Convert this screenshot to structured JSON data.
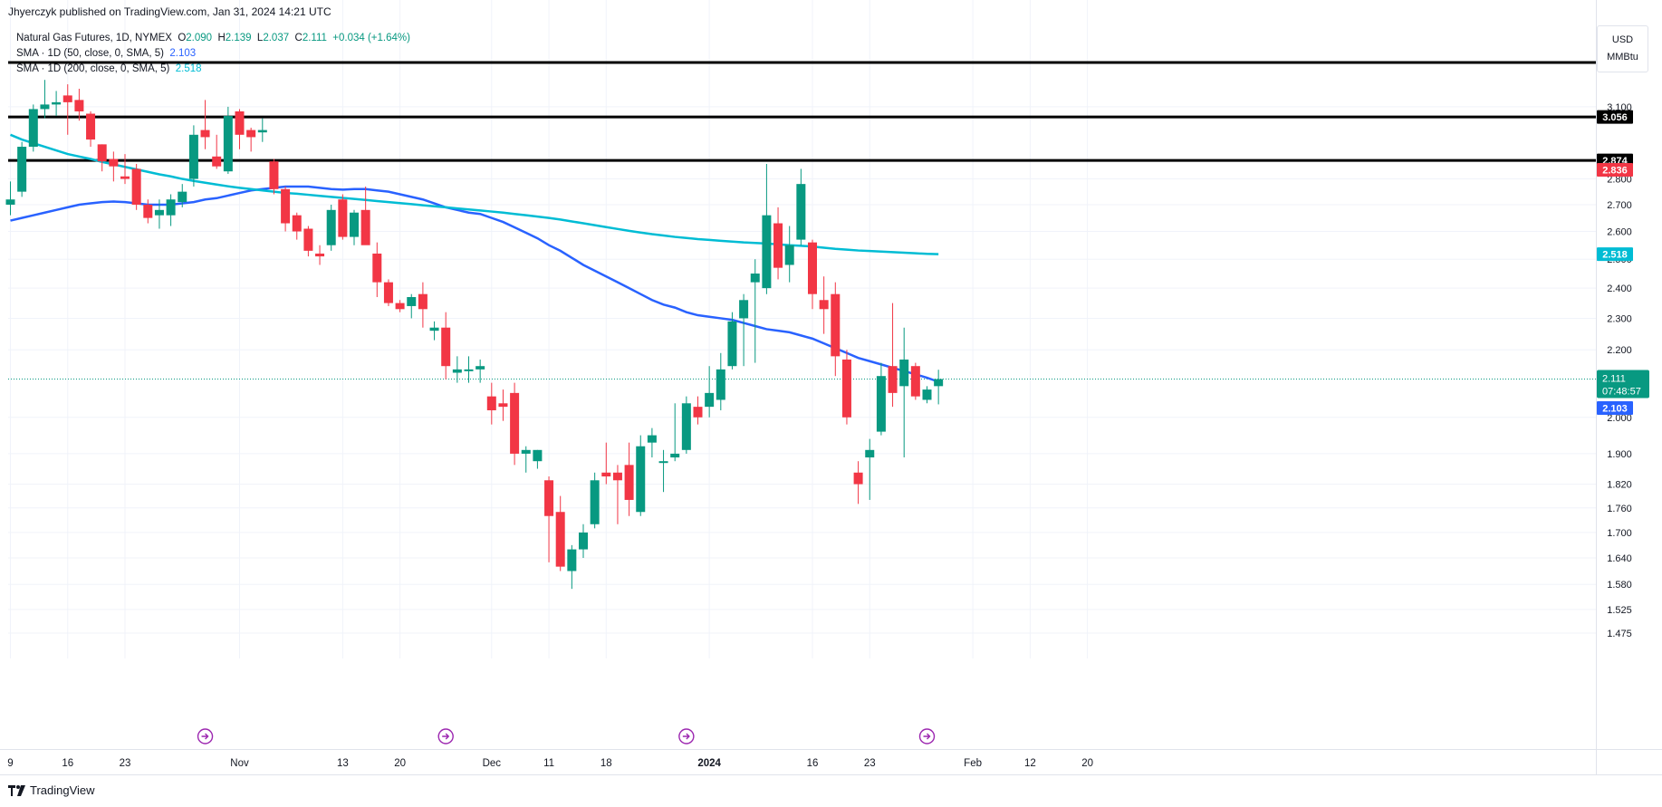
{
  "header": {
    "published": "Jhyerczyk published on TradingView.com, Jan 31, 2024 14:21 UTC"
  },
  "legend": {
    "symbol": "Natural Gas Futures, 1D, NYMEX",
    "o_label": "O",
    "o_value": "2.090",
    "h_label": "H",
    "h_value": "2.139",
    "l_label": "L",
    "l_value": "2.037",
    "c_label": "C",
    "c_value": "2.111",
    "change": "+0.034 (+1.64%)",
    "sma50_label": "SMA · 1D (50, close, 0, SMA, 5)",
    "sma50_value": "2.103",
    "sma200_label": "SMA · 1D (200, close, 0, SMA, 5)",
    "sma200_value": "2.518"
  },
  "unit_box": {
    "currency": "USD",
    "unit": "MMBtu"
  },
  "brand": {
    "name": "TradingView"
  },
  "colors": {
    "up": "#089981",
    "down": "#f23645",
    "sma50": "#2962ff",
    "sma200": "#00bcd4",
    "grid": "#f0f3fa"
  },
  "chart_data": {
    "type": "candlestick",
    "title": "Natural Gas Futures, 1D, NYMEX",
    "y_scale": "log",
    "ylim": [
      1.45,
      3.3
    ],
    "y_ticks": [
      "3.100",
      "2.800",
      "2.700",
      "2.600",
      "2.500",
      "2.400",
      "2.300",
      "2.200",
      "2.000",
      "1.900",
      "1.820",
      "1.760",
      "1.700",
      "1.640",
      "1.580",
      "1.525",
      "1.475"
    ],
    "x_ticks": [
      "9",
      "16",
      "23",
      "Nov",
      "13",
      "20",
      "Dec",
      "11",
      "18",
      "2024",
      "16",
      "23",
      "Feb",
      "12",
      "20"
    ],
    "x_tick_slots": [
      0,
      5,
      10,
      20,
      29,
      34,
      42,
      47,
      52,
      61,
      70,
      75,
      84,
      89,
      94
    ],
    "grid": true,
    "event_markers_slots": [
      17,
      38,
      59,
      80
    ],
    "horizontal_levels": [
      3.3,
      3.056,
      2.874
    ],
    "last_price": {
      "value": "2.111",
      "countdown": "07:48:57"
    },
    "price_labels": [
      {
        "value": "3.056",
        "style": "black"
      },
      {
        "value": "2.874",
        "style": "black"
      },
      {
        "value": "2.836",
        "style": "red"
      },
      {
        "value": "2.518",
        "style": "cyan"
      },
      {
        "value": "2.103",
        "style": "blue"
      }
    ],
    "candles": [
      {
        "o": 2.7,
        "h": 2.79,
        "l": 2.66,
        "c": 2.72
      },
      {
        "o": 2.75,
        "h": 2.95,
        "l": 2.73,
        "c": 2.93
      },
      {
        "o": 2.93,
        "h": 3.11,
        "l": 2.91,
        "c": 3.09
      },
      {
        "o": 3.09,
        "h": 3.22,
        "l": 3.05,
        "c": 3.11
      },
      {
        "o": 3.11,
        "h": 3.17,
        "l": 3.06,
        "c": 3.12
      },
      {
        "o": 3.15,
        "h": 3.2,
        "l": 2.98,
        "c": 3.12
      },
      {
        "o": 3.13,
        "h": 3.18,
        "l": 3.04,
        "c": 3.08
      },
      {
        "o": 3.07,
        "h": 3.08,
        "l": 2.93,
        "c": 2.96
      },
      {
        "o": 2.94,
        "h": 2.94,
        "l": 2.83,
        "c": 2.87
      },
      {
        "o": 2.88,
        "h": 2.91,
        "l": 2.79,
        "c": 2.85
      },
      {
        "o": 2.81,
        "h": 2.9,
        "l": 2.78,
        "c": 2.8
      },
      {
        "o": 2.84,
        "h": 2.86,
        "l": 2.68,
        "c": 2.7
      },
      {
        "o": 2.7,
        "h": 2.72,
        "l": 2.63,
        "c": 2.65
      },
      {
        "o": 2.66,
        "h": 2.72,
        "l": 2.61,
        "c": 2.68
      },
      {
        "o": 2.66,
        "h": 2.74,
        "l": 2.62,
        "c": 2.72
      },
      {
        "o": 2.71,
        "h": 2.78,
        "l": 2.69,
        "c": 2.75
      },
      {
        "o": 2.8,
        "h": 3.02,
        "l": 2.77,
        "c": 2.98
      },
      {
        "o": 3.0,
        "h": 3.13,
        "l": 2.92,
        "c": 2.97
      },
      {
        "o": 2.89,
        "h": 2.98,
        "l": 2.84,
        "c": 2.85
      },
      {
        "o": 2.83,
        "h": 3.1,
        "l": 2.82,
        "c": 3.06
      },
      {
        "o": 3.08,
        "h": 3.09,
        "l": 2.92,
        "c": 2.98
      },
      {
        "o": 3.0,
        "h": 3.01,
        "l": 2.91,
        "c": 2.97
      },
      {
        "o": 2.99,
        "h": 3.05,
        "l": 2.95,
        "c": 3.0
      },
      {
        "o": 2.87,
        "h": 2.88,
        "l": 2.74,
        "c": 2.76
      },
      {
        "o": 2.76,
        "h": 2.77,
        "l": 2.6,
        "c": 2.63
      },
      {
        "o": 2.66,
        "h": 2.67,
        "l": 2.57,
        "c": 2.6
      },
      {
        "o": 2.61,
        "h": 2.62,
        "l": 2.51,
        "c": 2.53
      },
      {
        "o": 2.52,
        "h": 2.55,
        "l": 2.48,
        "c": 2.51
      },
      {
        "o": 2.55,
        "h": 2.7,
        "l": 2.53,
        "c": 2.68
      },
      {
        "o": 2.72,
        "h": 2.74,
        "l": 2.57,
        "c": 2.58
      },
      {
        "o": 2.58,
        "h": 2.68,
        "l": 2.55,
        "c": 2.67
      },
      {
        "o": 2.68,
        "h": 2.77,
        "l": 2.56,
        "c": 2.55
      },
      {
        "o": 2.52,
        "h": 2.56,
        "l": 2.37,
        "c": 2.42
      },
      {
        "o": 2.42,
        "h": 2.43,
        "l": 2.34,
        "c": 2.35
      },
      {
        "o": 2.35,
        "h": 2.36,
        "l": 2.32,
        "c": 2.33
      },
      {
        "o": 2.34,
        "h": 2.38,
        "l": 2.3,
        "c": 2.37
      },
      {
        "o": 2.38,
        "h": 2.42,
        "l": 2.27,
        "c": 2.33
      },
      {
        "o": 2.26,
        "h": 2.29,
        "l": 2.23,
        "c": 2.27
      },
      {
        "o": 2.27,
        "h": 2.32,
        "l": 2.11,
        "c": 2.15
      },
      {
        "o": 2.13,
        "h": 2.18,
        "l": 2.1,
        "c": 2.14
      },
      {
        "o": 2.14,
        "h": 2.18,
        "l": 2.1,
        "c": 2.14
      },
      {
        "o": 2.14,
        "h": 2.17,
        "l": 2.1,
        "c": 2.15
      },
      {
        "o": 2.06,
        "h": 2.1,
        "l": 1.98,
        "c": 2.02
      },
      {
        "o": 2.04,
        "h": 2.08,
        "l": 1.99,
        "c": 2.03
      },
      {
        "o": 2.07,
        "h": 2.1,
        "l": 1.87,
        "c": 1.9
      },
      {
        "o": 1.9,
        "h": 1.92,
        "l": 1.85,
        "c": 1.91
      },
      {
        "o": 1.88,
        "h": 1.91,
        "l": 1.86,
        "c": 1.91
      },
      {
        "o": 1.83,
        "h": 1.84,
        "l": 1.63,
        "c": 1.74
      },
      {
        "o": 1.75,
        "h": 1.79,
        "l": 1.61,
        "c": 1.62
      },
      {
        "o": 1.61,
        "h": 1.67,
        "l": 1.57,
        "c": 1.66
      },
      {
        "o": 1.66,
        "h": 1.72,
        "l": 1.64,
        "c": 1.7
      },
      {
        "o": 1.72,
        "h": 1.85,
        "l": 1.71,
        "c": 1.83
      },
      {
        "o": 1.85,
        "h": 1.93,
        "l": 1.82,
        "c": 1.84
      },
      {
        "o": 1.85,
        "h": 1.87,
        "l": 1.72,
        "c": 1.83
      },
      {
        "o": 1.87,
        "h": 1.93,
        "l": 1.74,
        "c": 1.78
      },
      {
        "o": 1.75,
        "h": 1.95,
        "l": 1.74,
        "c": 1.92
      },
      {
        "o": 1.93,
        "h": 1.97,
        "l": 1.89,
        "c": 1.95
      },
      {
        "o": 1.88,
        "h": 1.91,
        "l": 1.8,
        "c": 1.88
      },
      {
        "o": 1.89,
        "h": 2.04,
        "l": 1.88,
        "c": 1.9
      },
      {
        "o": 1.91,
        "h": 2.06,
        "l": 1.9,
        "c": 2.04
      },
      {
        "o": 2.03,
        "h": 2.06,
        "l": 1.98,
        "c": 2.0
      },
      {
        "o": 2.03,
        "h": 2.15,
        "l": 2.0,
        "c": 2.07
      },
      {
        "o": 2.05,
        "h": 2.19,
        "l": 2.02,
        "c": 2.14
      },
      {
        "o": 2.15,
        "h": 2.32,
        "l": 2.14,
        "c": 2.29
      },
      {
        "o": 2.3,
        "h": 2.38,
        "l": 2.15,
        "c": 2.36
      },
      {
        "o": 2.42,
        "h": 2.5,
        "l": 2.16,
        "c": 2.45
      },
      {
        "o": 2.4,
        "h": 2.86,
        "l": 2.38,
        "c": 2.66
      },
      {
        "o": 2.63,
        "h": 2.69,
        "l": 2.43,
        "c": 2.47
      },
      {
        "o": 2.48,
        "h": 2.62,
        "l": 2.42,
        "c": 2.55
      },
      {
        "o": 2.57,
        "h": 2.84,
        "l": 2.55,
        "c": 2.78
      },
      {
        "o": 2.56,
        "h": 2.57,
        "l": 2.33,
        "c": 2.38
      },
      {
        "o": 2.36,
        "h": 2.44,
        "l": 2.25,
        "c": 2.33
      },
      {
        "o": 2.38,
        "h": 2.42,
        "l": 2.12,
        "c": 2.18
      },
      {
        "o": 2.17,
        "h": 2.2,
        "l": 1.98,
        "c": 2.0
      },
      {
        "o": 1.85,
        "h": 1.88,
        "l": 1.77,
        "c": 1.82
      },
      {
        "o": 1.89,
        "h": 1.94,
        "l": 1.78,
        "c": 1.91
      },
      {
        "o": 1.96,
        "h": 2.16,
        "l": 1.95,
        "c": 2.12
      },
      {
        "o": 2.15,
        "h": 2.35,
        "l": 2.03,
        "c": 2.07
      },
      {
        "o": 2.09,
        "h": 2.27,
        "l": 1.89,
        "c": 2.17
      },
      {
        "o": 2.15,
        "h": 2.16,
        "l": 2.05,
        "c": 2.06
      },
      {
        "o": 2.05,
        "h": 2.09,
        "l": 2.04,
        "c": 2.08
      },
      {
        "o": 2.09,
        "h": 2.139,
        "l": 2.037,
        "c": 2.111
      }
    ],
    "series": [
      {
        "name": "SMA · 1D (50, close, 0, SMA, 5)",
        "color": "#2962ff",
        "values": [
          2.64,
          2.65,
          2.66,
          2.67,
          2.68,
          2.69,
          2.7,
          2.705,
          2.71,
          2.712,
          2.71,
          2.705,
          2.7,
          2.7,
          2.7,
          2.705,
          2.71,
          2.72,
          2.725,
          2.735,
          2.745,
          2.755,
          2.76,
          2.765,
          2.77,
          2.77,
          2.77,
          2.765,
          2.76,
          2.758,
          2.76,
          2.76,
          2.755,
          2.75,
          2.74,
          2.73,
          2.72,
          2.705,
          2.69,
          2.68,
          2.67,
          2.665,
          2.65,
          2.635,
          2.615,
          2.595,
          2.575,
          2.55,
          2.53,
          2.505,
          2.48,
          2.46,
          2.44,
          2.42,
          2.4,
          2.38,
          2.36,
          2.345,
          2.335,
          2.32,
          2.31,
          2.305,
          2.3,
          2.295,
          2.285,
          2.275,
          2.265,
          2.26,
          2.255,
          2.245,
          2.235,
          2.22,
          2.205,
          2.19,
          2.175,
          2.165,
          2.155,
          2.145,
          2.135,
          2.125,
          2.115,
          2.103
        ]
      },
      {
        "name": "SMA · 1D (200, close, 0, SMA, 5)",
        "color": "#00bcd4",
        "values": [
          2.98,
          2.96,
          2.945,
          2.93,
          2.915,
          2.9,
          2.89,
          2.88,
          2.868,
          2.858,
          2.848,
          2.838,
          2.828,
          2.818,
          2.81,
          2.8,
          2.792,
          2.785,
          2.778,
          2.771,
          2.765,
          2.76,
          2.755,
          2.75,
          2.745,
          2.742,
          2.738,
          2.734,
          2.73,
          2.726,
          2.722,
          2.718,
          2.714,
          2.71,
          2.706,
          2.702,
          2.698,
          2.694,
          2.69,
          2.686,
          2.682,
          2.678,
          2.674,
          2.67,
          2.665,
          2.66,
          2.655,
          2.65,
          2.644,
          2.637,
          2.63,
          2.623,
          2.616,
          2.609,
          2.602,
          2.596,
          2.59,
          2.585,
          2.58,
          2.576,
          2.572,
          2.569,
          2.566,
          2.563,
          2.56,
          2.558,
          2.556,
          2.553,
          2.55,
          2.548,
          2.545,
          2.541,
          2.537,
          2.534,
          2.531,
          2.529,
          2.527,
          2.525,
          2.523,
          2.521,
          2.519,
          2.518
        ]
      }
    ]
  }
}
